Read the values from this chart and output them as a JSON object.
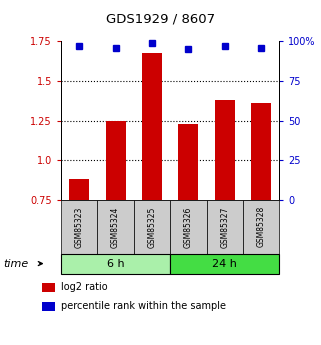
{
  "title": "GDS1929 / 8607",
  "samples": [
    "GSM85323",
    "GSM85324",
    "GSM85325",
    "GSM85326",
    "GSM85327",
    "GSM85328"
  ],
  "log2_ratio": [
    0.88,
    1.25,
    1.68,
    1.23,
    1.38,
    1.36
  ],
  "percentile_rank": [
    97,
    96,
    99,
    95,
    97,
    96
  ],
  "ylim_left": [
    0.75,
    1.75
  ],
  "ylim_right": [
    0,
    100
  ],
  "yticks_left": [
    0.75,
    1.0,
    1.25,
    1.5,
    1.75
  ],
  "yticks_right": [
    0,
    25,
    50,
    75,
    100
  ],
  "groups": [
    {
      "label": "6 h",
      "indices": [
        0,
        1,
        2
      ],
      "color": "#aaf0aa"
    },
    {
      "label": "24 h",
      "indices": [
        3,
        4,
        5
      ],
      "color": "#44dd44"
    }
  ],
  "bar_color": "#cc0000",
  "dot_color": "#0000cc",
  "bar_bottom": 0.75,
  "grid_yticks": [
    1.0,
    1.25,
    1.5
  ],
  "sample_box_color": "#cccccc",
  "legend_items": [
    {
      "label": "log2 ratio",
      "color": "#cc0000"
    },
    {
      "label": "percentile rank within the sample",
      "color": "#0000cc"
    }
  ],
  "time_label": "time",
  "left_tick_color": "#cc0000",
  "right_tick_color": "#0000cc"
}
